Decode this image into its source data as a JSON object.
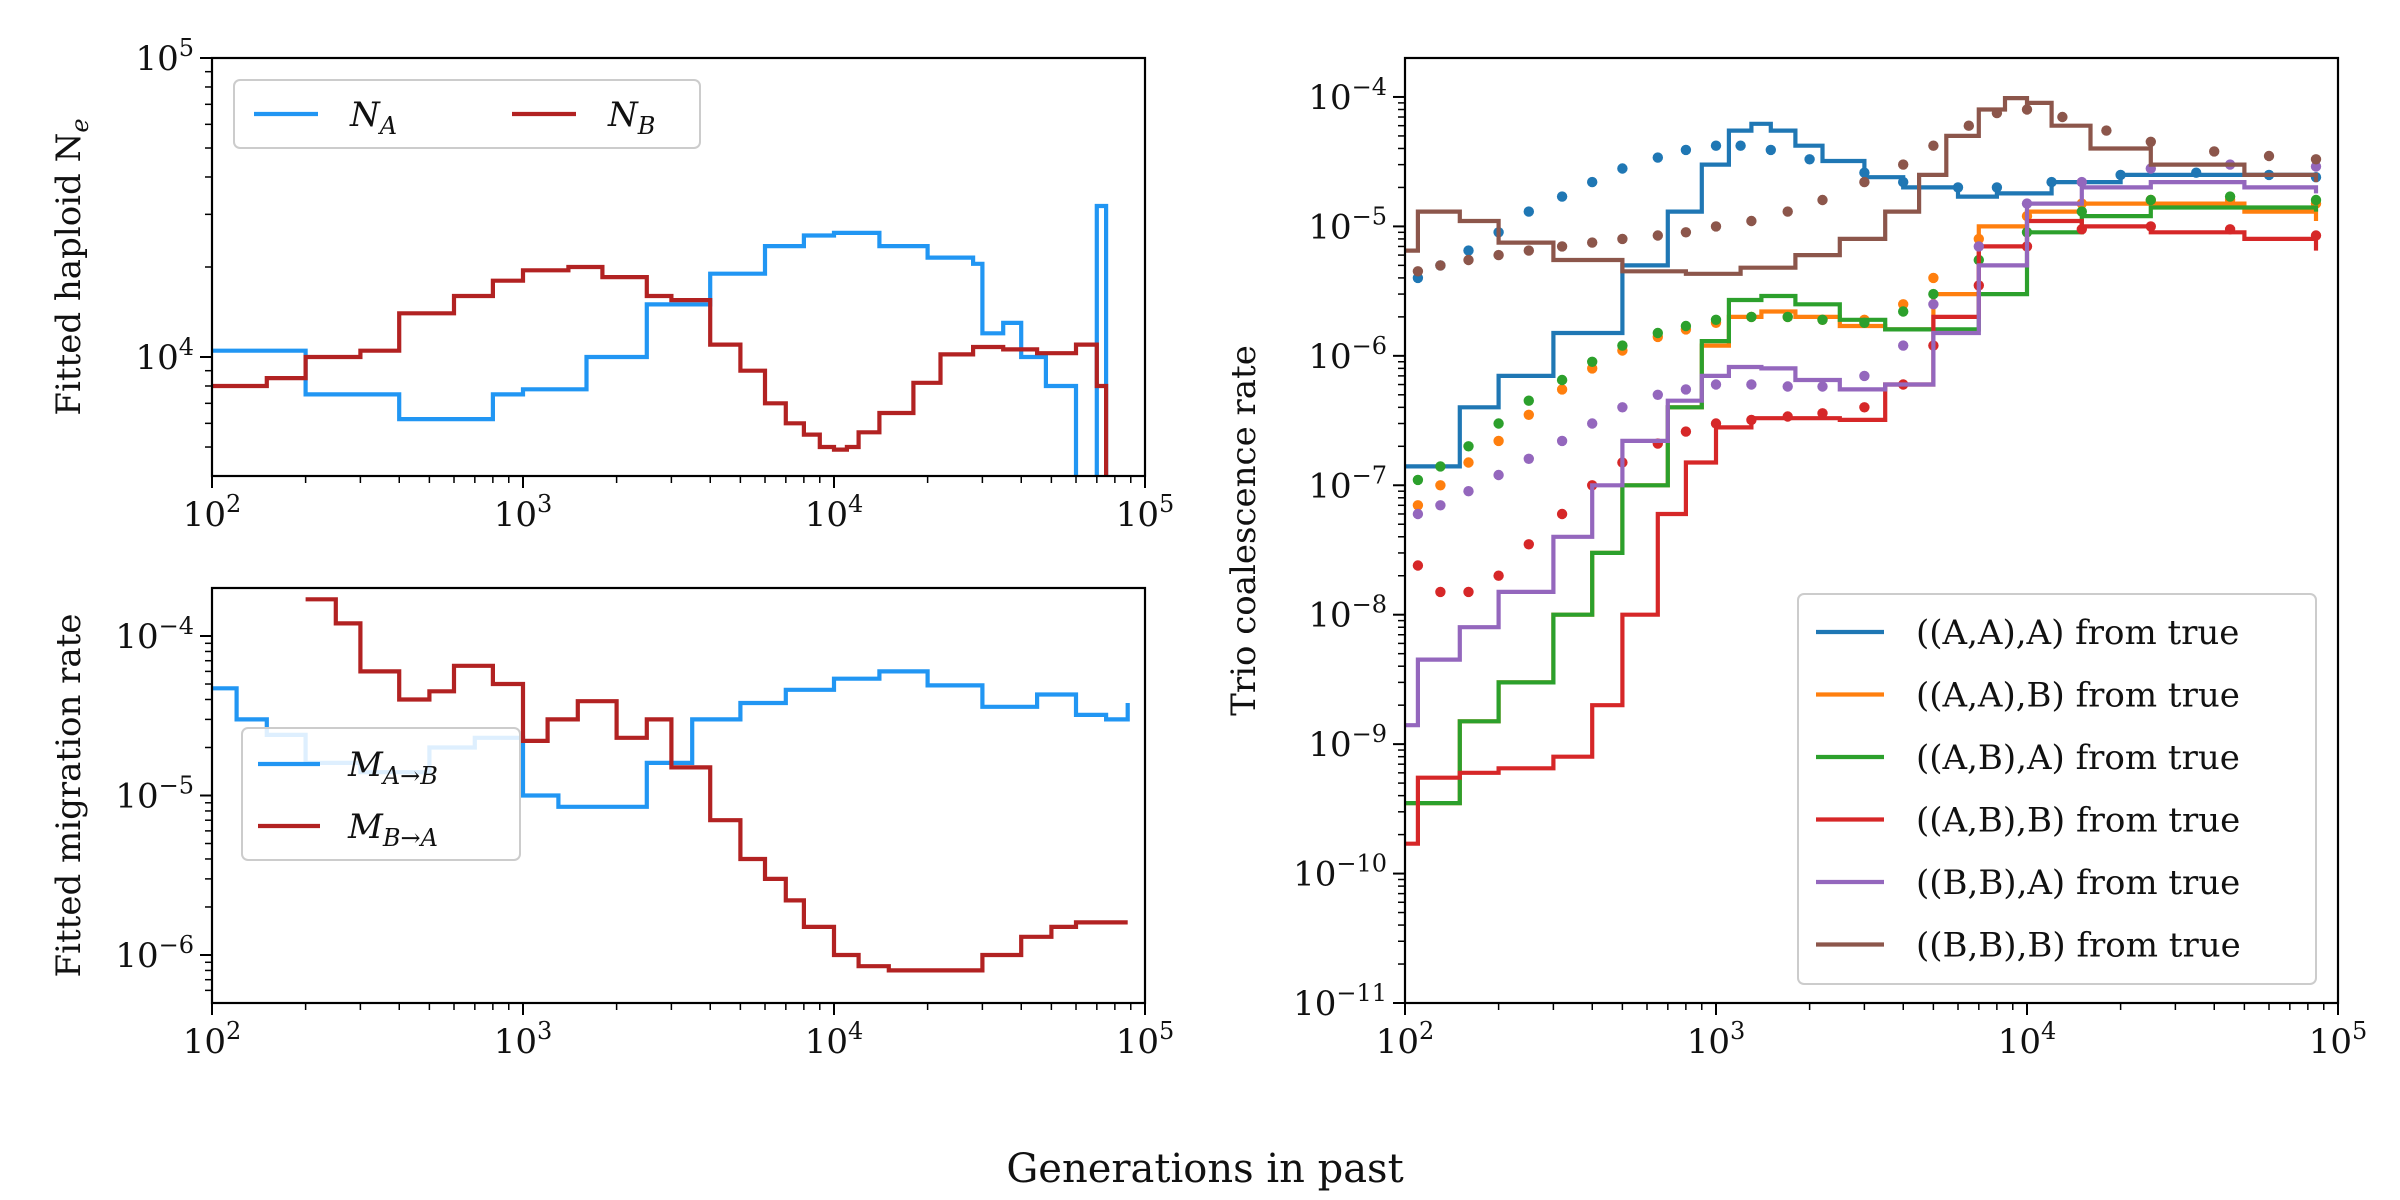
{
  "figure": {
    "xlabel": "Generations in past"
  },
  "chart_data": [
    {
      "id": "ne",
      "type": "line",
      "title": "",
      "xlabel": "",
      "ylabel": "Fitted haploid N_e",
      "xscale": "log",
      "yscale": "log",
      "xlim": [
        100,
        100000
      ],
      "ylim": [
        4000,
        100000
      ],
      "xticks": [
        {
          "v": 100,
          "base": "10",
          "exp": "2"
        },
        {
          "v": 1000,
          "base": "10",
          "exp": "3"
        },
        {
          "v": 10000,
          "base": "10",
          "exp": "4"
        },
        {
          "v": 100000,
          "base": "10",
          "exp": "5"
        }
      ],
      "yticks": [
        {
          "v": 10000,
          "base": "10",
          "exp": "4"
        },
        {
          "v": 100000,
          "base": "10",
          "exp": "5"
        }
      ],
      "grid": false,
      "legend": "top-left",
      "series": [
        {
          "name": "N_A",
          "label_main": "N",
          "label_sub": "A",
          "color": "#2196F3",
          "style": "step",
          "x": [
            100,
            200,
            400,
            800,
            1000,
            1600,
            2500,
            4000,
            6000,
            8000,
            10000,
            14000,
            20000,
            28000,
            30000,
            35000,
            40000,
            48000,
            60000,
            66000,
            70000,
            75000
          ],
          "y": [
            10500,
            7500,
            6200,
            7500,
            7800,
            10000,
            15000,
            19000,
            23500,
            25500,
            26000,
            23500,
            21500,
            20500,
            12000,
            13000,
            10000,
            8000,
            3800,
            3800,
            32000,
            3800
          ]
        },
        {
          "name": "N_B",
          "label_main": "N",
          "label_sub": "B",
          "color": "#B22222",
          "style": "step",
          "x": [
            100,
            150,
            200,
            300,
            400,
            600,
            800,
            1000,
            1400,
            1800,
            2500,
            3000,
            4000,
            5000,
            6000,
            7000,
            8000,
            9000,
            10000,
            11000,
            12000,
            14000,
            18000,
            22000,
            28000,
            35000,
            45000,
            60000,
            70000,
            75000
          ],
          "y": [
            8000,
            8500,
            10000,
            10500,
            14000,
            16000,
            18000,
            19500,
            20000,
            18500,
            16000,
            15500,
            11000,
            9000,
            7000,
            6000,
            5500,
            5000,
            4900,
            5000,
            5600,
            6500,
            8200,
            10200,
            10800,
            10600,
            10300,
            11000,
            8000,
            3800
          ]
        }
      ]
    },
    {
      "id": "mig",
      "type": "line",
      "title": "",
      "xlabel": "",
      "ylabel": "Fitted migration rate",
      "xscale": "log",
      "yscale": "log",
      "xlim": [
        100,
        100000
      ],
      "ylim": [
        5e-07,
        0.0002
      ],
      "xticks": [
        {
          "v": 100,
          "base": "10",
          "exp": "2"
        },
        {
          "v": 1000,
          "base": "10",
          "exp": "3"
        },
        {
          "v": 10000,
          "base": "10",
          "exp": "4"
        },
        {
          "v": 100000,
          "base": "10",
          "exp": "5"
        }
      ],
      "yticks": [
        {
          "v": 1e-06,
          "base": "10",
          "exp": "−6"
        },
        {
          "v": 1e-05,
          "base": "10",
          "exp": "−5"
        },
        {
          "v": 0.0001,
          "base": "10",
          "exp": "−4"
        }
      ],
      "grid": false,
      "legend": "center-left",
      "series": [
        {
          "name": "M_A→B",
          "label_main": "M",
          "label_sub": "A→B",
          "color": "#2196F3",
          "style": "step",
          "x": [
            100,
            120,
            150,
            200,
            300,
            500,
            700,
            1000,
            1300,
            1700,
            2500,
            3500,
            5000,
            7000,
            10000,
            14000,
            20000,
            30000,
            45000,
            60000,
            75000,
            88000
          ],
          "y": [
            4.7e-05,
            3e-05,
            2.4e-05,
            1.6e-05,
            1.4e-05,
            2e-05,
            2.3e-05,
            1e-05,
            8.5e-06,
            8.5e-06,
            1.6e-05,
            3e-05,
            3.8e-05,
            4.6e-05,
            5.4e-05,
            6e-05,
            4.9e-05,
            3.6e-05,
            4.3e-05,
            3.2e-05,
            3e-05,
            3.8e-05
          ]
        },
        {
          "name": "M_B→A",
          "label_main": "M",
          "label_sub": "B→A",
          "color": "#B22222",
          "style": "step",
          "x": [
            200,
            250,
            300,
            400,
            500,
            600,
            800,
            1000,
            1200,
            1500,
            2000,
            2500,
            3000,
            4000,
            5000,
            6000,
            7000,
            8000,
            10000,
            12000,
            15000,
            20000,
            30000,
            40000,
            50000,
            60000,
            88000
          ],
          "y": [
            0.00017,
            0.00012,
            6e-05,
            4e-05,
            4.5e-05,
            6.5e-05,
            5e-05,
            2.2e-05,
            3e-05,
            3.9e-05,
            2.3e-05,
            3e-05,
            1.5e-05,
            7e-06,
            4e-06,
            3e-06,
            2.2e-06,
            1.5e-06,
            1e-06,
            8.5e-07,
            8e-07,
            8e-07,
            1e-06,
            1.3e-06,
            1.5e-06,
            1.6e-06,
            1.6e-06
          ]
        }
      ]
    },
    {
      "id": "trio",
      "type": "line",
      "title": "",
      "xlabel": "",
      "ylabel": "Trio coalescence rate",
      "xscale": "log",
      "yscale": "log",
      "xlim": [
        100,
        100000
      ],
      "ylim": [
        1e-11,
        0.0002
      ],
      "xticks": [
        {
          "v": 100,
          "base": "10",
          "exp": "2"
        },
        {
          "v": 1000,
          "base": "10",
          "exp": "3"
        },
        {
          "v": 10000,
          "base": "10",
          "exp": "4"
        },
        {
          "v": 100000,
          "base": "10",
          "exp": "5"
        }
      ],
      "yticks": [
        {
          "v": 1e-11,
          "base": "10",
          "exp": "−11"
        },
        {
          "v": 1e-10,
          "base": "10",
          "exp": "−10"
        },
        {
          "v": 1e-09,
          "base": "10",
          "exp": "−9"
        },
        {
          "v": 1e-08,
          "base": "10",
          "exp": "−8"
        },
        {
          "v": 1e-07,
          "base": "10",
          "exp": "−7"
        },
        {
          "v": 1e-06,
          "base": "10",
          "exp": "−6"
        },
        {
          "v": 1e-05,
          "base": "10",
          "exp": "−5"
        },
        {
          "v": 0.0001,
          "base": "10",
          "exp": "−4"
        }
      ],
      "grid": false,
      "legend": "bottom-right",
      "series": [
        {
          "name": "((A,A),A) from true",
          "color": "#1F77B4",
          "fitted_x": [
            100,
            150,
            200,
            300,
            500,
            700,
            900,
            1100,
            1300,
            1500,
            1800,
            2200,
            3000,
            4000,
            6000,
            8000,
            12000,
            20000,
            40000,
            85000
          ],
          "fitted_y": [
            1.4e-07,
            4e-07,
            7e-07,
            1.5e-06,
            5e-06,
            1.3e-05,
            3e-05,
            5.5e-05,
            6.2e-05,
            5.5e-05,
            4.2e-05,
            3.2e-05,
            2.4e-05,
            2e-05,
            1.7e-05,
            1.8e-05,
            2.2e-05,
            2.5e-05,
            2.5e-05,
            2.3e-05
          ],
          "true_x": [
            110,
            130,
            160,
            200,
            250,
            320,
            400,
            500,
            650,
            800,
            1000,
            1200,
            1500,
            2000,
            3000,
            4000,
            6000,
            8000,
            12000,
            20000,
            35000,
            60000,
            85000
          ],
          "true_y": [
            4e-06,
            5e-06,
            6.5e-06,
            9e-06,
            1.3e-05,
            1.7e-05,
            2.2e-05,
            2.8e-05,
            3.4e-05,
            3.9e-05,
            4.2e-05,
            4.2e-05,
            3.9e-05,
            3.3e-05,
            2.6e-05,
            2.2e-05,
            2e-05,
            2e-05,
            2.2e-05,
            2.5e-05,
            2.6e-05,
            2.5e-05,
            2.4e-05
          ]
        },
        {
          "name": "((A,A),B) from true",
          "color": "#FF7F0E",
          "fitted_x": [
            100,
            150,
            200,
            300,
            400,
            500,
            700,
            900,
            1100,
            1400,
            1800,
            2500,
            3500,
            5000,
            7000,
            10000,
            15000,
            25000,
            50000,
            85000
          ],
          "fitted_y": [
            3.5e-10,
            1.5e-09,
            3e-09,
            1e-08,
            3e-08,
            1e-07,
            4e-07,
            1.2e-06,
            2e-06,
            2.2e-06,
            2e-06,
            1.7e-06,
            1.6e-06,
            3e-06,
            1e-05,
            1.3e-05,
            1.5e-05,
            1.5e-05,
            1.3e-05,
            1.1e-05
          ],
          "true_x": [
            110,
            130,
            160,
            200,
            250,
            320,
            400,
            500,
            650,
            800,
            1000,
            1300,
            1700,
            2200,
            3000,
            4000,
            5000,
            7000,
            10000,
            15000,
            25000,
            45000,
            85000
          ],
          "true_y": [
            7e-08,
            1e-07,
            1.5e-07,
            2.2e-07,
            3.5e-07,
            5.5e-07,
            8e-07,
            1.1e-06,
            1.4e-06,
            1.6e-06,
            1.8e-06,
            2e-06,
            2e-06,
            1.9e-06,
            1.9e-06,
            2.5e-06,
            4e-06,
            8e-06,
            1.2e-05,
            1.5e-05,
            1.6e-05,
            1.6e-05,
            1.5e-05
          ]
        },
        {
          "name": "((A,B),A) from true",
          "color": "#2CA02C",
          "fitted_x": [
            100,
            150,
            200,
            300,
            400,
            500,
            700,
            900,
            1100,
            1400,
            1800,
            2500,
            3500,
            5000,
            7000,
            10000,
            15000,
            25000,
            50000,
            85000
          ],
          "fitted_y": [
            3.5e-10,
            1.5e-09,
            3e-09,
            1e-08,
            3e-08,
            1e-07,
            4e-07,
            1.3e-06,
            2.7e-06,
            2.9e-06,
            2.5e-06,
            1.9e-06,
            1.6e-06,
            1.6e-06,
            3e-06,
            9e-06,
            1.2e-05,
            1.4e-05,
            1.4e-05,
            1.3e-05
          ],
          "true_x": [
            110,
            130,
            160,
            200,
            250,
            320,
            400,
            500,
            650,
            800,
            1000,
            1300,
            1700,
            2200,
            3000,
            4000,
            5000,
            7000,
            10000,
            15000,
            25000,
            45000,
            85000
          ],
          "true_y": [
            1.1e-07,
            1.4e-07,
            2e-07,
            3e-07,
            4.5e-07,
            6.5e-07,
            9e-07,
            1.2e-06,
            1.5e-06,
            1.7e-06,
            1.9e-06,
            2e-06,
            2e-06,
            1.9e-06,
            1.8e-06,
            2.2e-06,
            3e-06,
            5.5e-06,
            9e-06,
            1.3e-05,
            1.6e-05,
            1.7e-05,
            1.6e-05
          ]
        },
        {
          "name": "((A,B),B) from true",
          "color": "#D62728",
          "fitted_x": [
            100,
            110,
            150,
            200,
            300,
            400,
            500,
            650,
            800,
            1000,
            1300,
            1700,
            2500,
            3500,
            5000,
            7000,
            10000,
            15000,
            25000,
            50000,
            85000
          ],
          "fitted_y": [
            1.7e-10,
            5.5e-10,
            6e-10,
            6.5e-10,
            8e-10,
            2e-09,
            1e-08,
            6e-08,
            1.5e-07,
            2.8e-07,
            3.3e-07,
            3.3e-07,
            3.2e-07,
            6e-07,
            2e-06,
            7e-06,
            1.1e-05,
            1e-05,
            9e-06,
            8e-06,
            6.5e-06
          ],
          "true_x": [
            110,
            130,
            160,
            200,
            250,
            320,
            400,
            500,
            650,
            800,
            1000,
            1300,
            1700,
            2200,
            3000,
            4000,
            5000,
            7000,
            10000,
            15000,
            25000,
            45000,
            85000
          ],
          "true_y": [
            2.4e-08,
            1.5e-08,
            1.5e-08,
            2e-08,
            3.5e-08,
            6e-08,
            1e-07,
            1.5e-07,
            2.1e-07,
            2.6e-07,
            3e-07,
            3.2e-07,
            3.4e-07,
            3.6e-07,
            4e-07,
            6e-07,
            1.2e-06,
            3.5e-06,
            7e-06,
            9.5e-06,
            1e-05,
            9.5e-06,
            8.5e-06
          ]
        },
        {
          "name": "((B,B),A) from true",
          "color": "#9467BD",
          "fitted_x": [
            100,
            110,
            150,
            200,
            300,
            400,
            500,
            700,
            900,
            1100,
            1400,
            1800,
            2500,
            3500,
            5000,
            7000,
            10000,
            15000,
            25000,
            50000,
            85000
          ],
          "fitted_y": [
            1.4e-09,
            4.5e-09,
            8e-09,
            1.5e-08,
            4e-08,
            1e-07,
            2.2e-07,
            4.5e-07,
            7e-07,
            8.2e-07,
            8e-07,
            6.5e-07,
            5.5e-07,
            6e-07,
            1.5e-06,
            5e-06,
            1.5e-05,
            2e-05,
            2.2e-05,
            2e-05,
            1.8e-05
          ],
          "true_x": [
            110,
            130,
            160,
            200,
            250,
            320,
            400,
            500,
            650,
            800,
            1000,
            1300,
            1700,
            2200,
            3000,
            4000,
            5000,
            7000,
            10000,
            15000,
            25000,
            45000,
            85000
          ],
          "true_y": [
            6e-08,
            7e-08,
            9e-08,
            1.2e-07,
            1.6e-07,
            2.2e-07,
            3e-07,
            4e-07,
            5e-07,
            5.5e-07,
            6e-07,
            6e-07,
            5.8e-07,
            5.8e-07,
            7e-07,
            1.2e-06,
            2.5e-06,
            7e-06,
            1.5e-05,
            2.2e-05,
            2.8e-05,
            3e-05,
            2.9e-05
          ]
        },
        {
          "name": "((B,B),B) from true",
          "color": "#8C564B",
          "fitted_x": [
            100,
            110,
            150,
            200,
            300,
            500,
            800,
            1200,
            1800,
            2500,
            3500,
            4500,
            5500,
            7000,
            8500,
            10000,
            12000,
            16000,
            25000,
            50000,
            85000
          ],
          "fitted_y": [
            6.5e-06,
            1.3e-05,
            1.1e-05,
            7.5e-06,
            5.5e-06,
            4.5e-06,
            4.3e-06,
            4.8e-06,
            6e-06,
            8e-06,
            1.3e-05,
            2.5e-05,
            5e-05,
            8e-05,
            9.8e-05,
            9e-05,
            6e-05,
            4e-05,
            3e-05,
            2.5e-05,
            2.2e-05
          ],
          "true_x": [
            110,
            130,
            160,
            200,
            250,
            320,
            400,
            500,
            650,
            800,
            1000,
            1300,
            1700,
            2200,
            3000,
            4000,
            5000,
            6500,
            8000,
            10000,
            13000,
            18000,
            25000,
            40000,
            60000,
            85000
          ],
          "true_y": [
            4.5e-06,
            5e-06,
            5.5e-06,
            6e-06,
            6.5e-06,
            7e-06,
            7.5e-06,
            8e-06,
            8.5e-06,
            9e-06,
            1e-05,
            1.1e-05,
            1.3e-05,
            1.6e-05,
            2.2e-05,
            3e-05,
            4.2e-05,
            6e-05,
            7.5e-05,
            8e-05,
            7e-05,
            5.5e-05,
            4.5e-05,
            3.8e-05,
            3.5e-05,
            3.3e-05
          ]
        }
      ]
    }
  ]
}
